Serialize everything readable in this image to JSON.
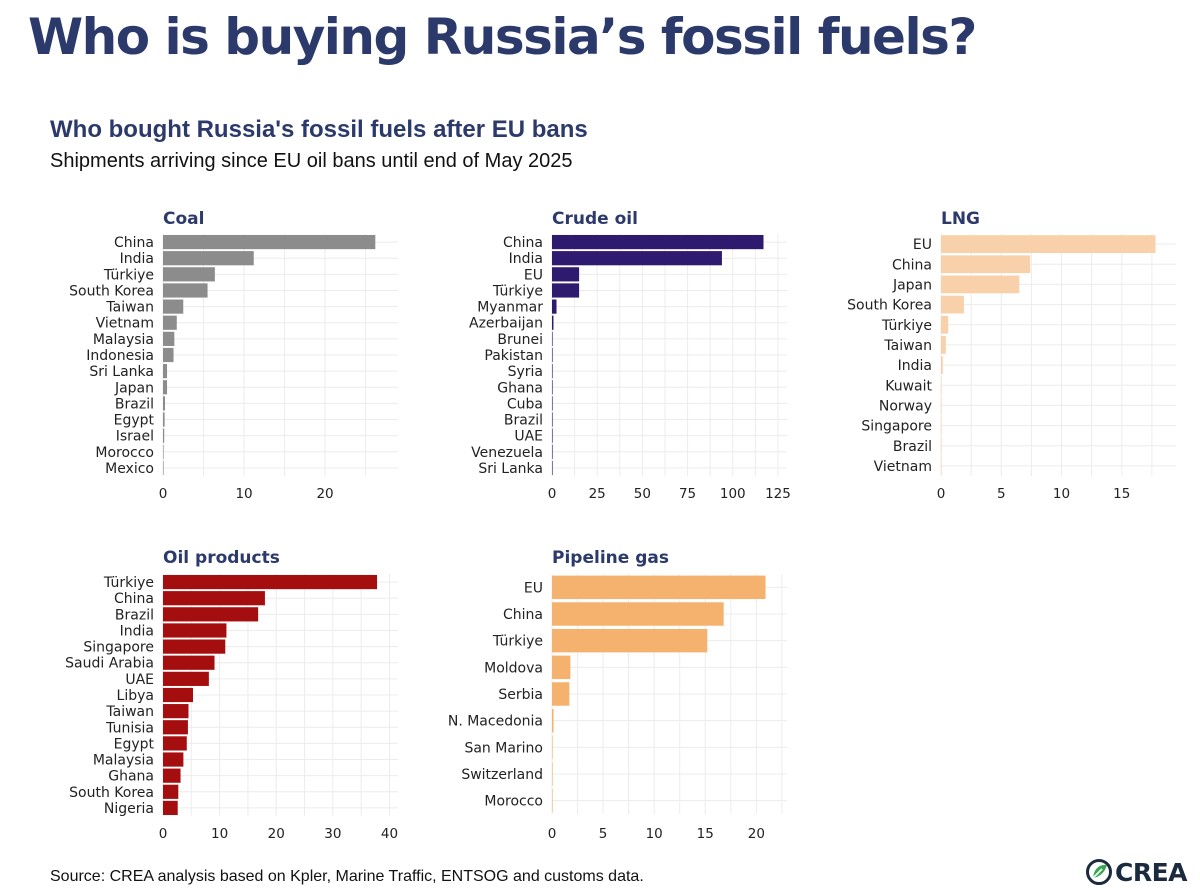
{
  "headline": "Who is buying Russia’s fossil fuels?",
  "subtitle": "Who bought Russia's fossil fuels after EU bans",
  "subsubtitle": "Shipments arriving since EU oil bans until end of May 2025",
  "source": "Source: CREA analysis based on Kpler, Marine Traffic, ENTSOG and customs data.",
  "logo_text": "CREA",
  "colors": {
    "title": "#2c3a6b",
    "coal": "#8c8c8c",
    "crude_oil": "#2e1a6e",
    "lng": "#f8d1ab",
    "oil_products": "#a50e0e",
    "pipeline_gas": "#f5b26e",
    "logo_green": "#3aa655",
    "logo_dark": "#1c2a3f"
  },
  "chart_data": [
    {
      "id": "coal",
      "type": "bar",
      "orientation": "horizontal",
      "title": "Coal",
      "categories": [
        "China",
        "India",
        "Türkiye",
        "South Korea",
        "Taiwan",
        "Vietnam",
        "Malaysia",
        "Indonesia",
        "Sri Lanka",
        "Japan",
        "Brazil",
        "Egypt",
        "Israel",
        "Morocco",
        "Mexico"
      ],
      "values": [
        26.2,
        11.2,
        6.4,
        5.5,
        2.5,
        1.7,
        1.4,
        1.3,
        0.5,
        0.5,
        0.25,
        0.2,
        0.15,
        0.05,
        0.03
      ],
      "xlim": [
        0,
        29
      ],
      "xticks": [
        0,
        10,
        20
      ],
      "color_key": "coal"
    },
    {
      "id": "crude_oil",
      "type": "bar",
      "orientation": "horizontal",
      "title": "Crude oil",
      "categories": [
        "China",
        "India",
        "EU",
        "Türkiye",
        "Myanmar",
        "Azerbaijan",
        "Brunei",
        "Pakistan",
        "Syria",
        "Ghana",
        "Cuba",
        "Brazil",
        "UAE",
        "Venezuela",
        "Sri Lanka"
      ],
      "values": [
        117,
        94,
        15,
        15,
        2.5,
        0.8,
        0.3,
        0.3,
        0.3,
        0.2,
        0.2,
        0.2,
        0.1,
        0.1,
        0.1
      ],
      "xlim": [
        0,
        130
      ],
      "xticks": [
        0,
        25,
        50,
        75,
        100,
        125
      ],
      "color_key": "crude_oil"
    },
    {
      "id": "lng",
      "type": "bar",
      "orientation": "horizontal",
      "title": "LNG",
      "categories": [
        "EU",
        "China",
        "Japan",
        "South Korea",
        "Türkiye",
        "Taiwan",
        "India",
        "Kuwait",
        "Norway",
        "Singapore",
        "Brazil",
        "Vietnam"
      ],
      "values": [
        17.8,
        7.4,
        6.5,
        1.9,
        0.6,
        0.4,
        0.15,
        0.05,
        0.05,
        0.03,
        0.02,
        0.01
      ],
      "xlim": [
        0,
        19.5
      ],
      "xticks": [
        0,
        5,
        10,
        15
      ],
      "color_key": "lng"
    },
    {
      "id": "oil_products",
      "type": "bar",
      "orientation": "horizontal",
      "title": "Oil products",
      "categories": [
        "Türkiye",
        "China",
        "Brazil",
        "India",
        "Singapore",
        "Saudi Arabia",
        "UAE",
        "Libya",
        "Taiwan",
        "Tunisia",
        "Egypt",
        "Malaysia",
        "Ghana",
        "South Korea",
        "Nigeria"
      ],
      "values": [
        37.8,
        18,
        16.8,
        11.2,
        11,
        9.1,
        8.1,
        5.3,
        4.5,
        4.4,
        4.2,
        3.6,
        3.1,
        2.7,
        2.6
      ],
      "xlim": [
        0,
        41.5
      ],
      "xticks": [
        0,
        10,
        20,
        30,
        40
      ],
      "color_key": "oil_products"
    },
    {
      "id": "pipeline_gas",
      "type": "bar",
      "orientation": "horizontal",
      "title": "Pipeline gas",
      "categories": [
        "EU",
        "China",
        "Türkiye",
        "Moldova",
        "Serbia",
        "N. Macedonia",
        "San Marino",
        "Switzerland",
        "Morocco"
      ],
      "values": [
        20.9,
        16.8,
        15.2,
        1.8,
        1.7,
        0.15,
        0.03,
        0.03,
        0.02
      ],
      "xlim": [
        0,
        23
      ],
      "xticks": [
        0,
        5,
        10,
        15,
        20
      ],
      "color_key": "pipeline_gas"
    }
  ]
}
